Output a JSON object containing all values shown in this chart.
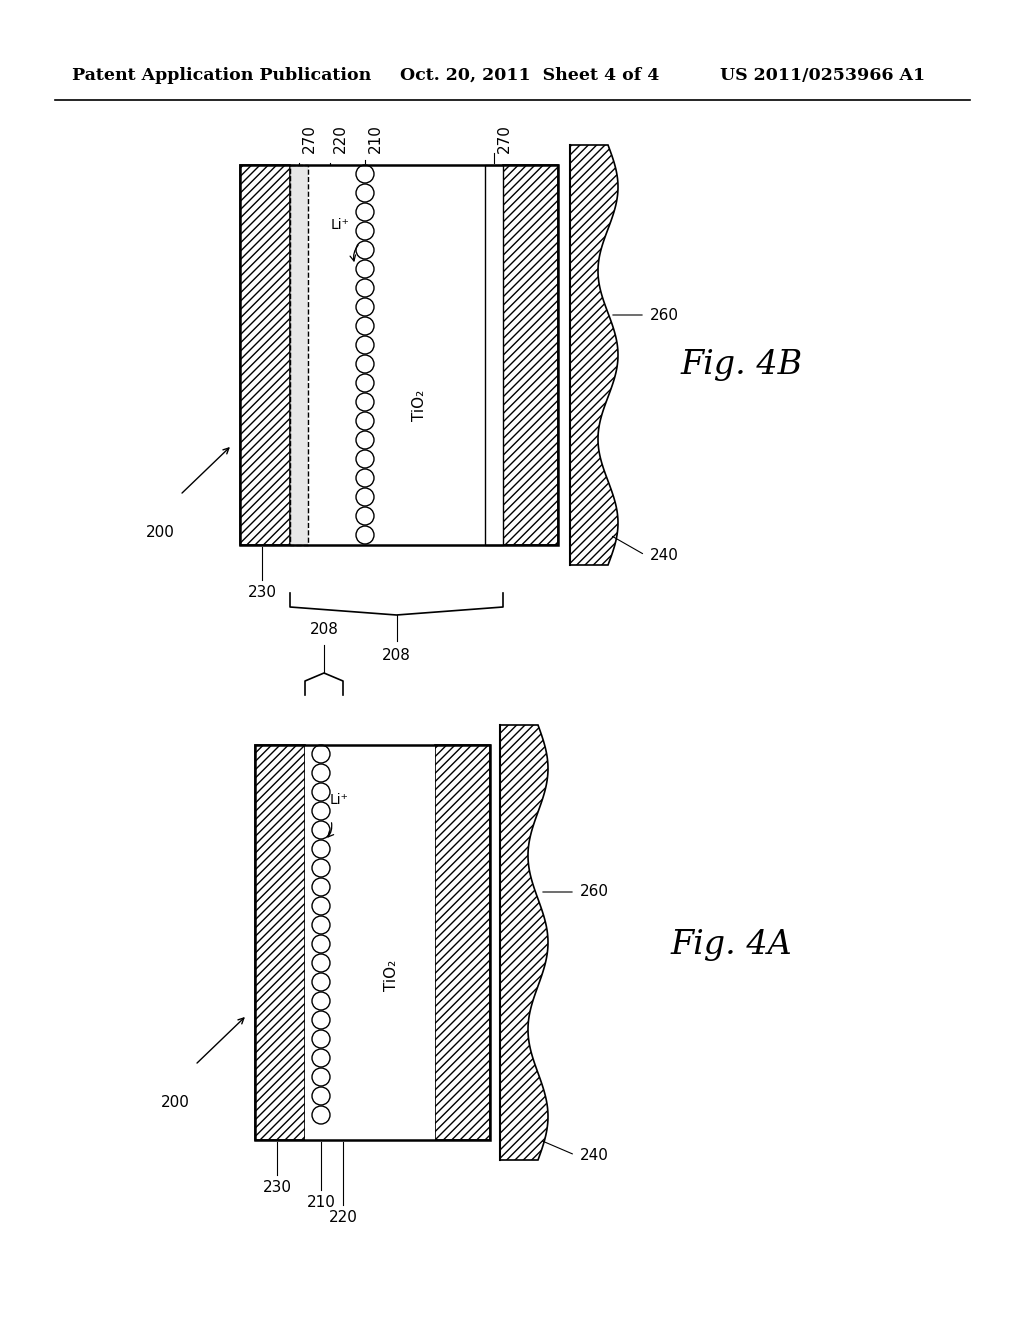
{
  "header_left": "Patent Application Publication",
  "header_mid": "Oct. 20, 2011  Sheet 4 of 4",
  "header_right": "US 2011/0253966 A1",
  "bg_color": "#ffffff",
  "fig4b": {
    "label": "Fig. 4B",
    "tio2": "TiO₂",
    "li": "Li⁺"
  },
  "fig4a": {
    "label": "Fig. 4A",
    "tio2": "TiO₂",
    "li": "Li⁺"
  }
}
